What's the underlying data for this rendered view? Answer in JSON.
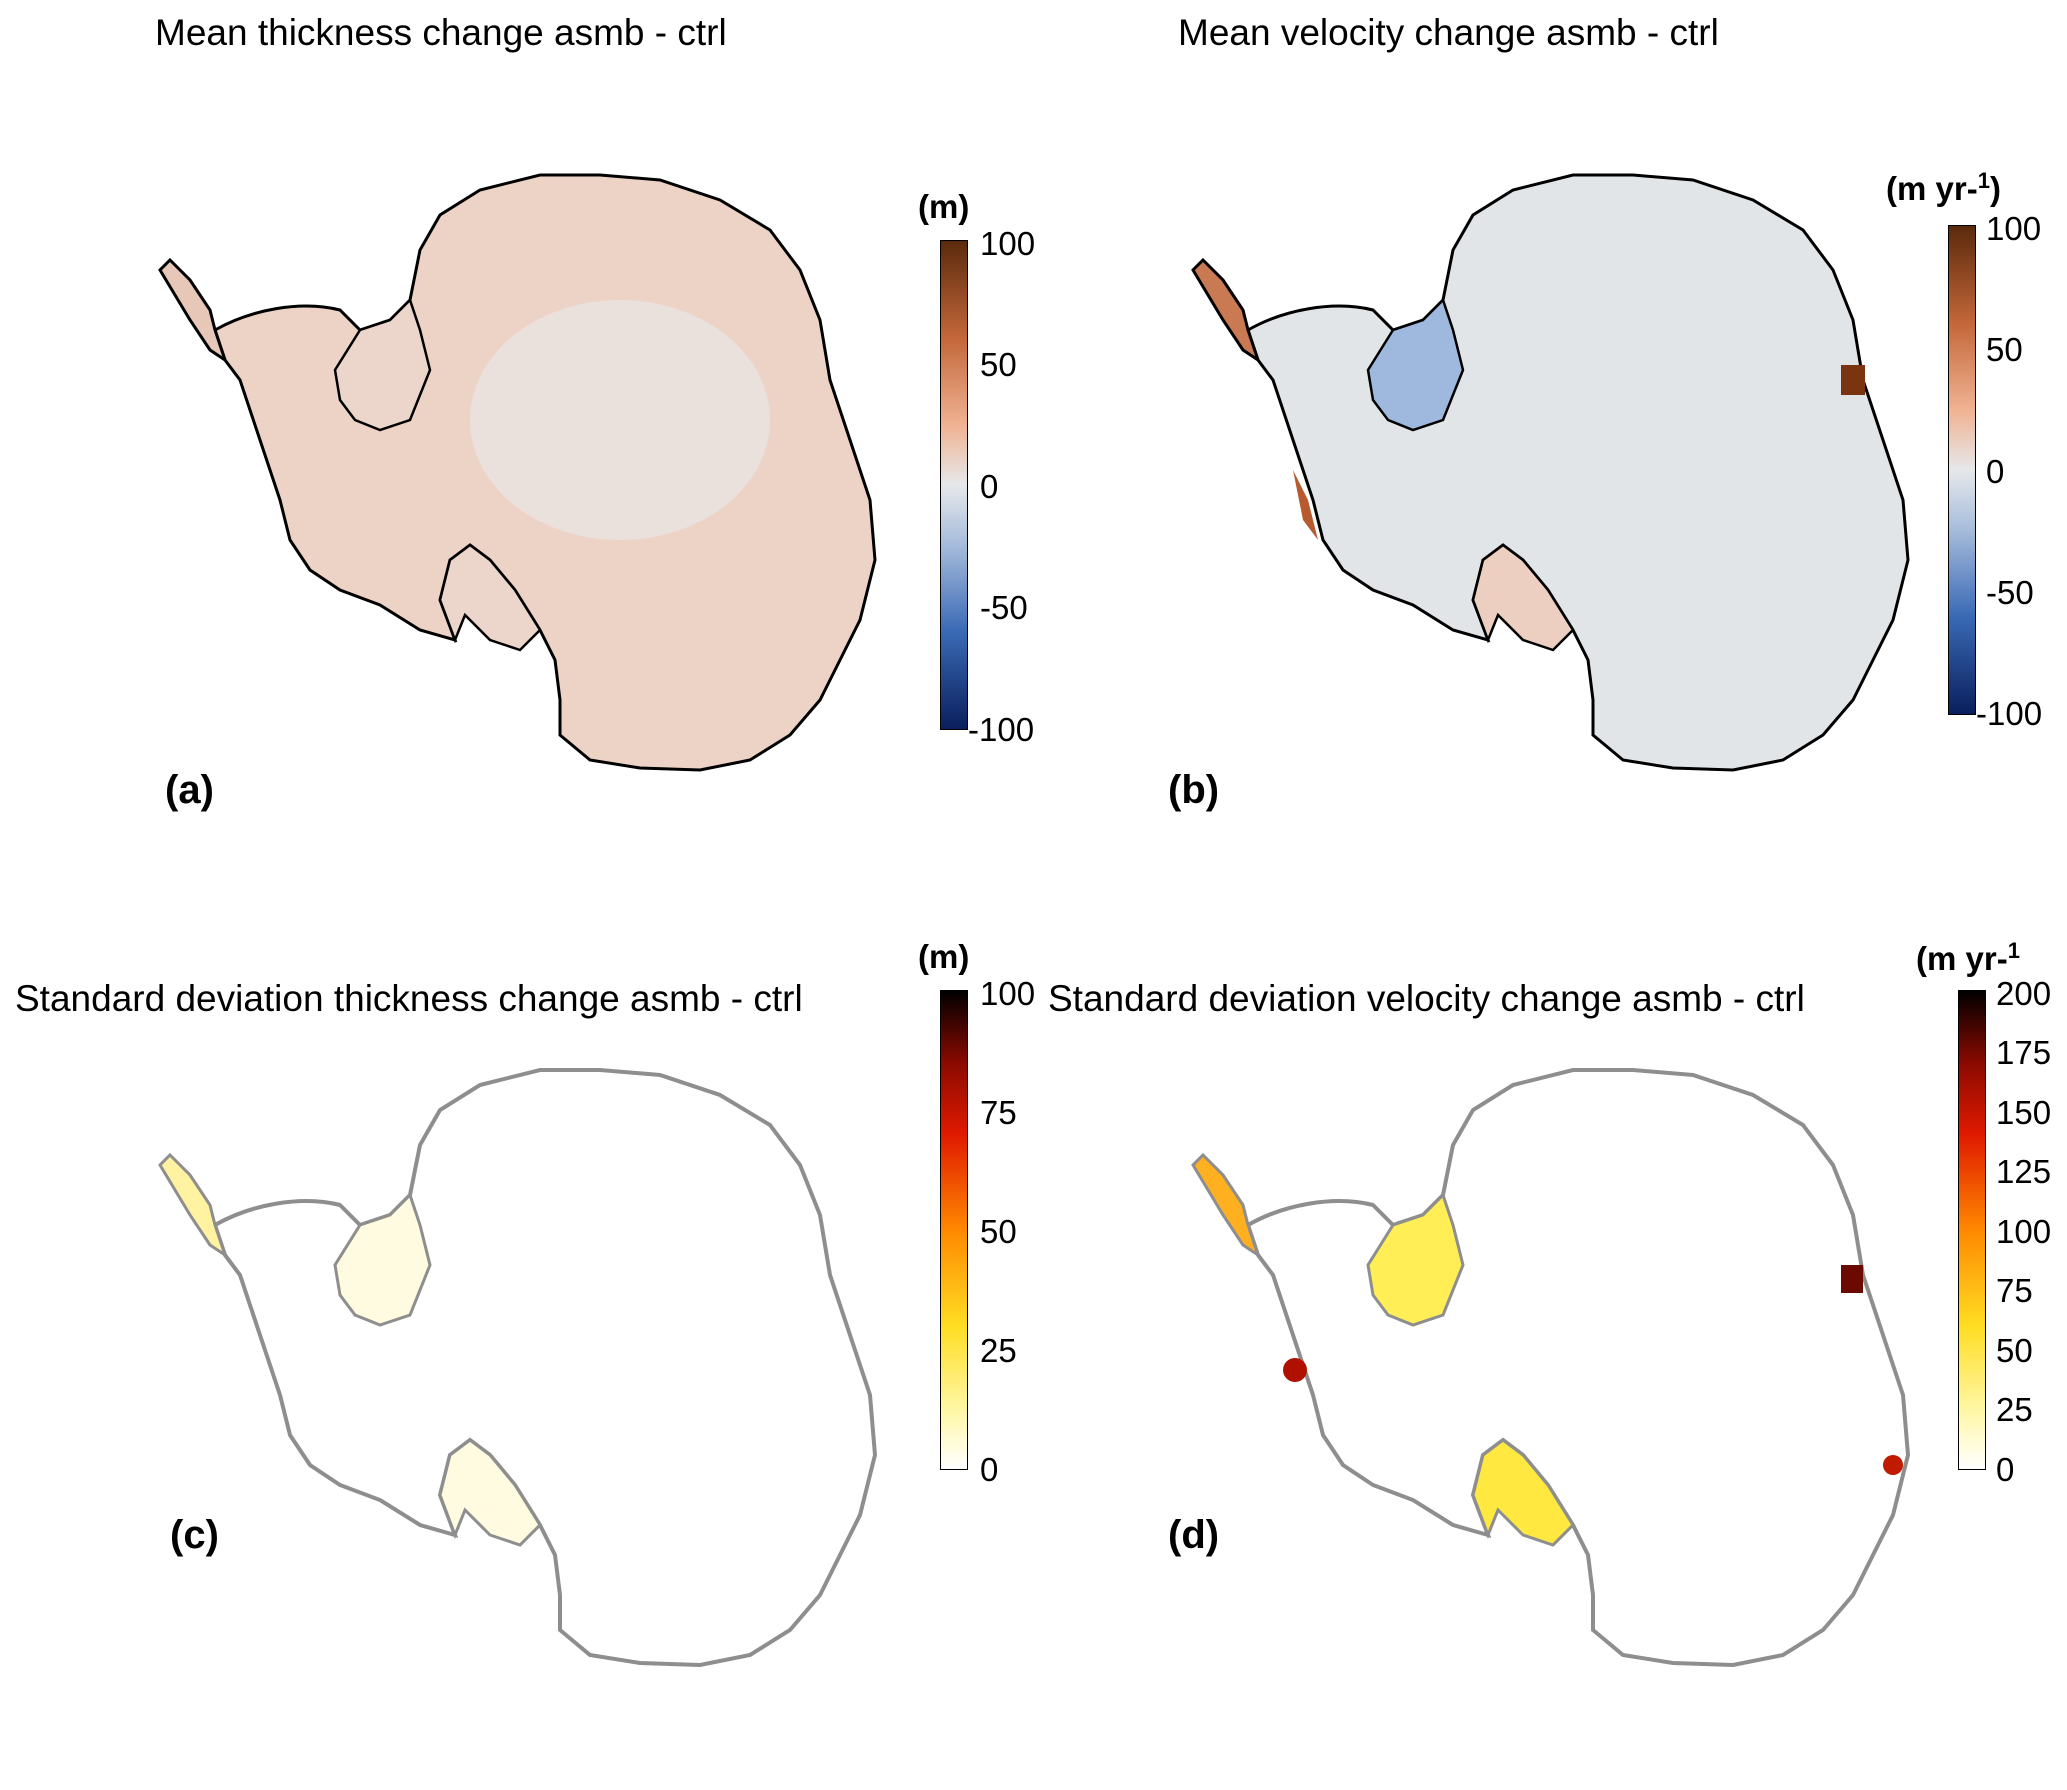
{
  "panels": [
    {
      "title": "Mean thickness change asmb - ctrl",
      "label": "(a)",
      "unit": "(m)",
      "unit_sup": "",
      "ticks": [
        "100",
        "50",
        "0",
        "-50",
        "-100"
      ],
      "colormap": "diverging blue-white-orange",
      "colors": {
        "high": "#5a2a0c",
        "mid_high": "#e8906a",
        "zero": "#e6e8ea",
        "mid_low": "#3a6ab5",
        "low": "#0a1f5c",
        "fill": "#edd0c2"
      }
    },
    {
      "title": "Mean velocity change asmb - ctrl",
      "label": "(b)",
      "unit": "(m yr-",
      "unit_sup": "1",
      "unit_close": ")",
      "ticks": [
        "100",
        "50",
        "0",
        "-50",
        "-100"
      ],
      "colormap": "diverging blue-white-orange",
      "colors": {
        "high": "#5a2a0c",
        "mid_high": "#e8906a",
        "zero": "#e6e8ea",
        "mid_low": "#3a6ab5",
        "low": "#0a1f5c",
        "fill": "#e1e4e6"
      }
    },
    {
      "title": "Standard deviation thickness change asmb - ctrl",
      "label": "(c)",
      "unit": "(m)",
      "unit_sup": "",
      "ticks": [
        "100",
        "75",
        "50",
        "25",
        "0"
      ],
      "colormap": "hot (white-yellow-red-black)",
      "colors": {
        "top": "#000000",
        "upper": "#cc1100",
        "middle": "#ff9900",
        "lower": "#ffee22",
        "bottom": "#ffffff",
        "outline": "#8e8e8e"
      }
    },
    {
      "title": "Standard deviation velocity change asmb - ctrl",
      "label": "(d)",
      "unit": "(m yr-",
      "unit_sup": "1",
      "unit_close": "",
      "ticks": [
        "200",
        "175",
        "150",
        "125",
        "100",
        "75",
        "50",
        "25",
        "0"
      ],
      "colormap": "hot (white-yellow-red-black)",
      "colors": {
        "top": "#000000",
        "upper": "#cc1100",
        "middle": "#ff9900",
        "lower": "#ffee22",
        "bottom": "#ffffff",
        "outline": "#8e8e8e"
      }
    }
  ]
}
